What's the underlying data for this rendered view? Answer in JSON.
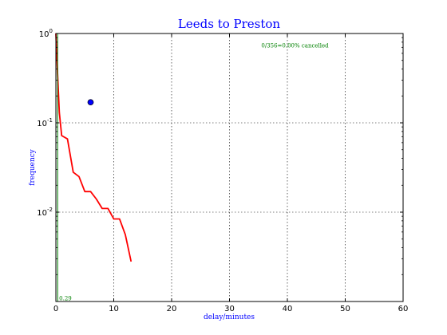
{
  "chart_data": {
    "type": "line",
    "title": "Leeds to Preston",
    "xlabel": "delay/minutes",
    "ylabel": "frequency",
    "xlim": [
      0,
      60
    ],
    "ylim": [
      0.001,
      1
    ],
    "yscale": "log",
    "grid": true,
    "x_ticks": [
      {
        "value": 0,
        "label": "0"
      },
      {
        "value": 10,
        "label": "10"
      },
      {
        "value": 20,
        "label": "20"
      },
      {
        "value": 30,
        "label": "30"
      },
      {
        "value": 40,
        "label": "40"
      },
      {
        "value": 50,
        "label": "50"
      },
      {
        "value": 60,
        "label": "60"
      }
    ],
    "y_ticks": [
      {
        "value": 0.01,
        "base": "10",
        "exp": "-2"
      },
      {
        "value": 0.1,
        "base": "10",
        "exp": "-1"
      },
      {
        "value": 1,
        "base": "10",
        "exp": "0"
      }
    ],
    "series": [
      {
        "color": "#ff0000",
        "style": "line",
        "x": [
          0,
          0.3,
          0.6,
          1,
          2,
          3,
          4,
          5,
          6,
          7,
          8,
          9,
          10,
          11,
          12,
          13
        ],
        "y": [
          1.0,
          0.35,
          0.13,
          0.072,
          0.066,
          0.028,
          0.025,
          0.017,
          0.017,
          0.014,
          0.011,
          0.011,
          0.0084,
          0.0084,
          0.0056,
          0.0028
        ]
      },
      {
        "color": "#008000",
        "style": "line",
        "x": [
          0.3,
          0.3
        ],
        "y": [
          0.001,
          1.0
        ]
      },
      {
        "color": "#0000ff",
        "style": "marker",
        "x": [
          6
        ],
        "y": [
          0.17
        ]
      }
    ],
    "annotations": [
      {
        "text": "0/356=0.00% cancelled",
        "x": 35.5,
        "y": 0.7,
        "color": "#008000"
      },
      {
        "text": "0.29",
        "x": 0.3,
        "y": 0.00103,
        "color": "#008000"
      }
    ]
  }
}
